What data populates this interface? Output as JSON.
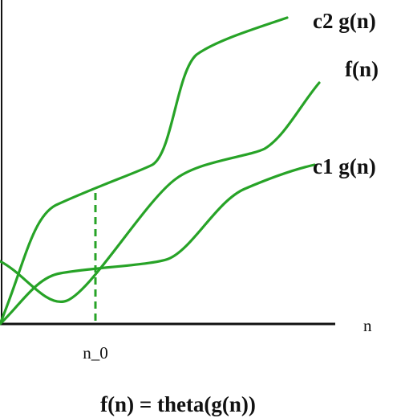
{
  "labels": {
    "upper": "c2 g(n)",
    "function": "f(n)",
    "lower": "c1 g(n)"
  },
  "axis": {
    "x_label": "n",
    "threshold": "n_0"
  },
  "caption": "f(n) = theta(g(n))"
}
